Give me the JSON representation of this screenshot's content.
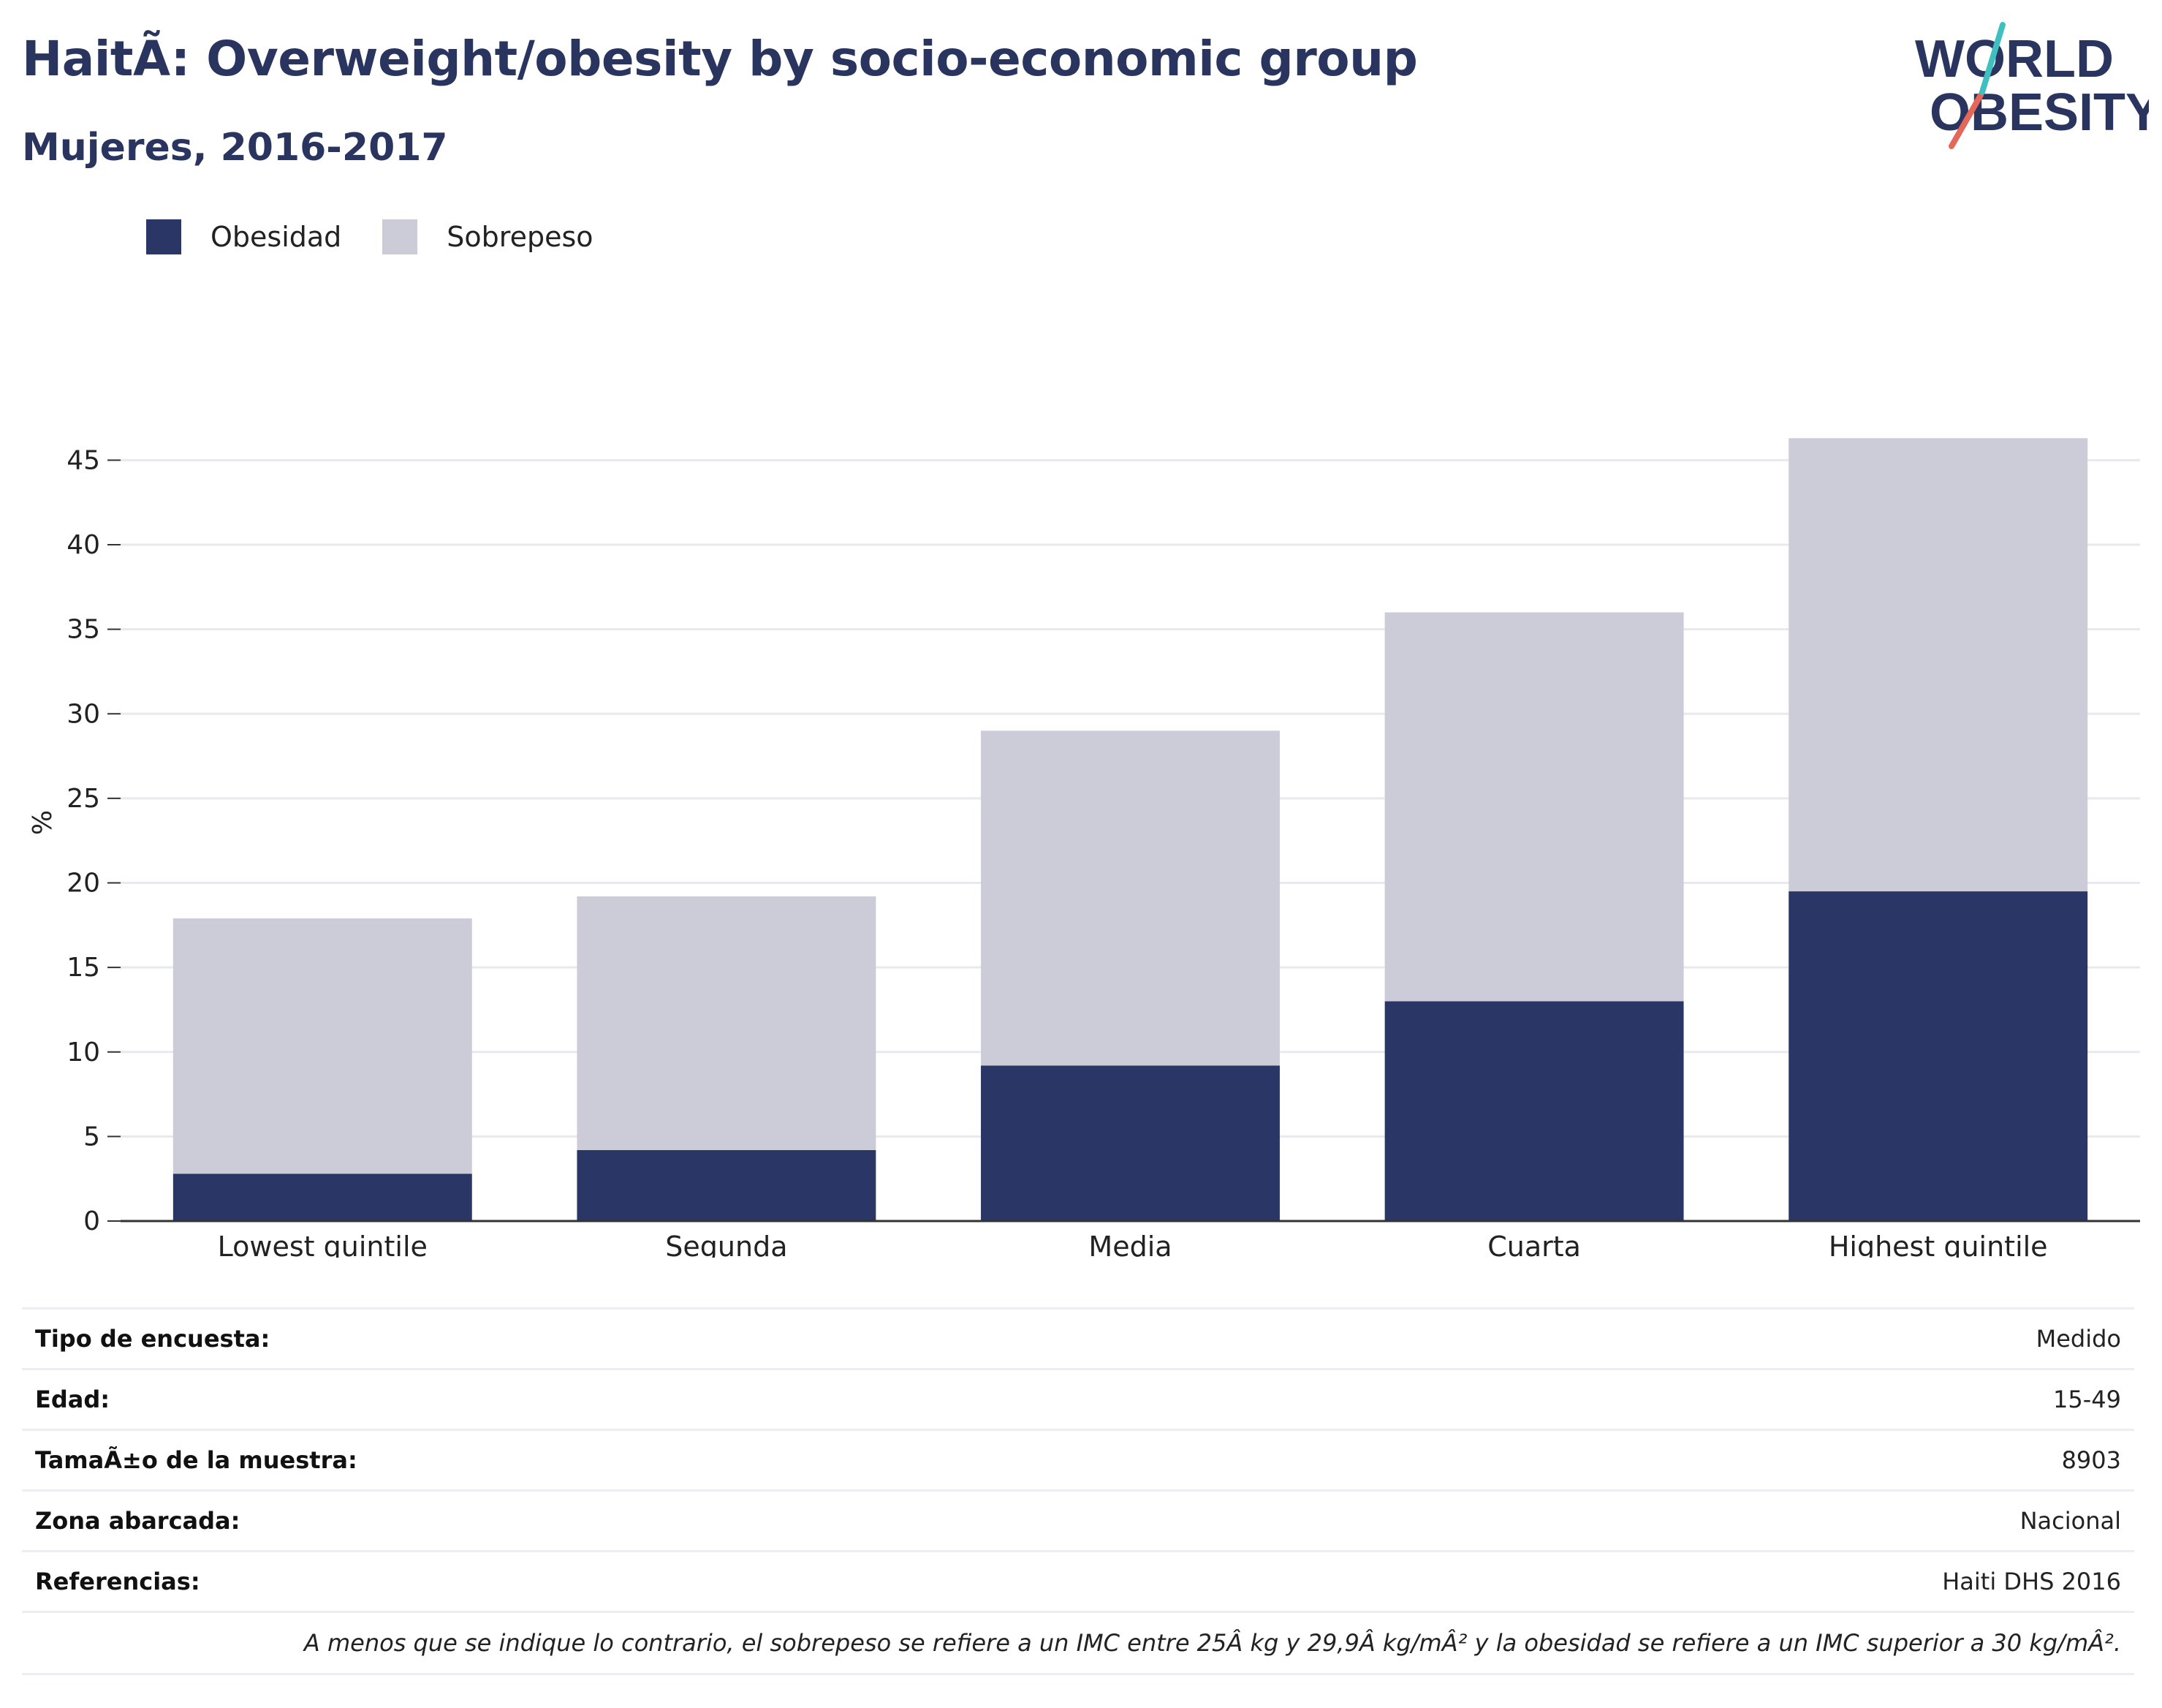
{
  "header": {
    "title": "HaitÃ: Overweight/obesity by socio-economic group",
    "subtitle": "Mujeres, 2016-2017"
  },
  "logo": {
    "line1": "WORLD",
    "line2": "OBESITY"
  },
  "legend": [
    {
      "label": "Obesidad",
      "color": "#2a3665"
    },
    {
      "label": "Sobrepeso",
      "color": "#cbccd8"
    }
  ],
  "chart_data": {
    "type": "bar",
    "stacked": true,
    "categories": [
      "Lowest quintile",
      "Segunda",
      "Media",
      "Cuarta",
      "Highest quintile"
    ],
    "series": [
      {
        "name": "Obesidad",
        "color": "#2a3665",
        "values": [
          2.8,
          4.2,
          9.2,
          13.0,
          19.5
        ]
      },
      {
        "name": "Sobrepeso",
        "color": "#cbccd8",
        "values": [
          15.1,
          15.0,
          19.8,
          23.0,
          26.8
        ]
      }
    ],
    "ylabel": "%",
    "yticks": [
      0,
      5,
      10,
      15,
      20,
      25,
      30,
      35,
      40,
      45
    ],
    "ylim": [
      0,
      48
    ],
    "grid": true,
    "legend_position": "top-left"
  },
  "info": [
    {
      "label": "Tipo de encuesta:",
      "value": "Medido"
    },
    {
      "label": "Edad:",
      "value": "15-49"
    },
    {
      "label": "TamaÃ±o de la muestra:",
      "value": "8903"
    },
    {
      "label": "Zona abarcada:",
      "value": "Nacional"
    },
    {
      "label": "Referencias:",
      "value": "Haiti DHS 2016"
    }
  ],
  "note": "A menos que se indique lo contrario, el sobrepeso se refiere a un IMC entre 25Â kg y 29,9Â kg/mÂ² y la obesidad se refiere a un IMC superior a 30 kg/mÂ²."
}
